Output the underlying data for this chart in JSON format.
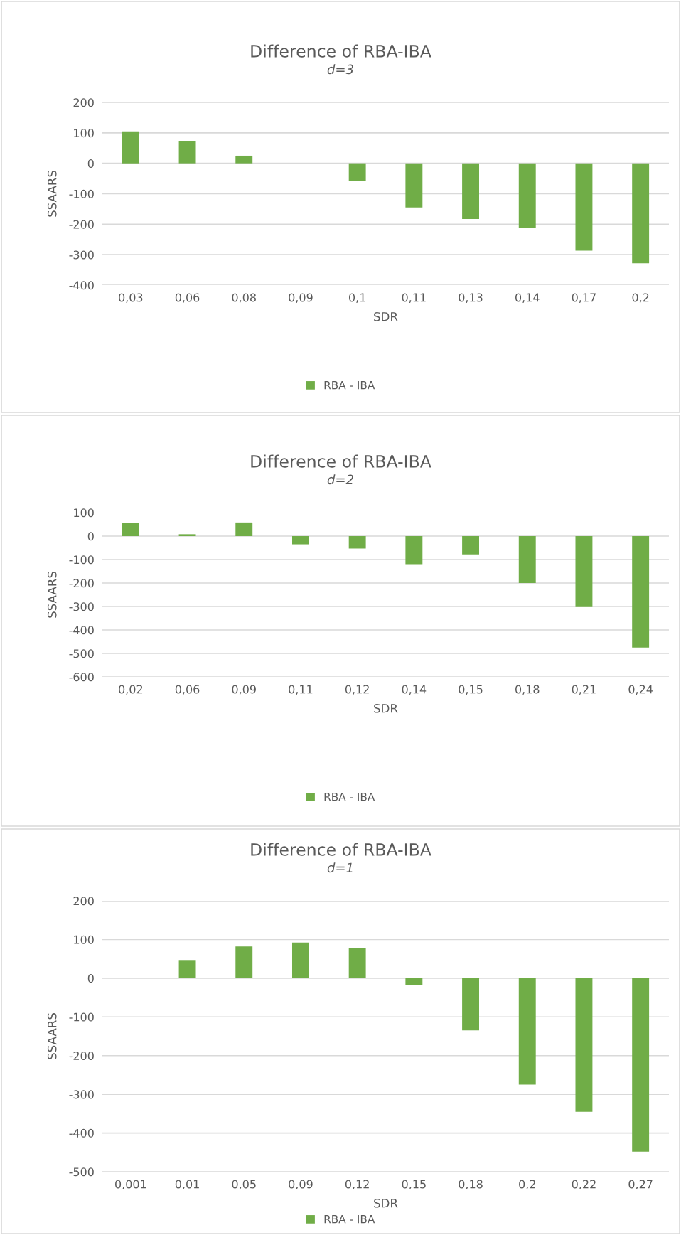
{
  "chart_data": [
    {
      "type": "bar",
      "title": "Difference of RBA-IBA",
      "subtitle": "d=3",
      "xlabel": "SDR",
      "ylabel": "SSAARS",
      "categories": [
        "0,03",
        "0,06",
        "0,08",
        "0,09",
        "0,1",
        "0,11",
        "0,13",
        "0,14",
        "0,17",
        "0,2"
      ],
      "series": [
        {
          "name": "RBA - IBA",
          "color": "#70ad47",
          "values": [
            105,
            73,
            25,
            0,
            -58,
            -145,
            -183,
            -213,
            -287,
            -328
          ]
        }
      ],
      "ylim": [
        -400,
        200
      ],
      "yticks": [
        -400,
        -300,
        -200,
        -100,
        0,
        100,
        200
      ],
      "grid": "y",
      "legend": "bottom"
    },
    {
      "type": "bar",
      "title": "Difference of RBA-IBA",
      "subtitle": "d=2",
      "xlabel": "SDR",
      "ylabel": "SSAARS",
      "categories": [
        "0,02",
        "0,06",
        "0,09",
        "0,11",
        "0,12",
        "0,14",
        "0,15",
        "0,18",
        "0,21",
        "0,24"
      ],
      "series": [
        {
          "name": "RBA - IBA",
          "color": "#70ad47",
          "values": [
            55,
            8,
            58,
            -35,
            -53,
            -120,
            -78,
            -200,
            -302,
            -475
          ]
        }
      ],
      "ylim": [
        -600,
        100
      ],
      "yticks": [
        -600,
        -500,
        -400,
        -300,
        -200,
        -100,
        0,
        100
      ],
      "grid": "y",
      "legend": "bottom"
    },
    {
      "type": "bar",
      "title": "Difference of RBA-IBA",
      "subtitle": "d=1",
      "xlabel": "SDR",
      "ylabel": "SSAARS",
      "categories": [
        "0,001",
        "0,01",
        "0,05",
        "0,09",
        "0,12",
        "0,15",
        "0,18",
        "0,2",
        "0,22",
        "0,27"
      ],
      "series": [
        {
          "name": "RBA - IBA",
          "color": "#70ad47",
          "values": [
            0,
            47,
            82,
            92,
            78,
            -18,
            -135,
            -275,
            -345,
            -448
          ]
        }
      ],
      "ylim": [
        -500,
        200
      ],
      "yticks": [
        -500,
        -400,
        -300,
        -200,
        -100,
        0,
        100,
        200
      ],
      "grid": "y",
      "legend": "bottom"
    }
  ]
}
